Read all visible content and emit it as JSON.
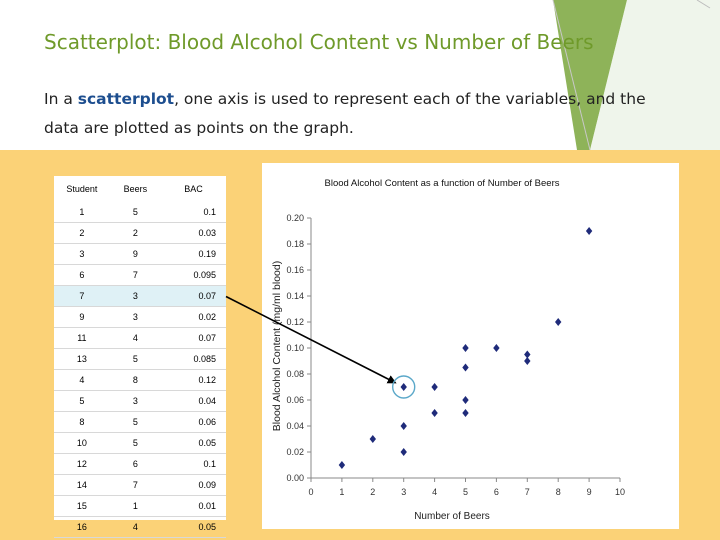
{
  "slide": {
    "title": "Scatterplot: Blood Alcohol Content vs Number of Beers",
    "body_prefix": "In a ",
    "body_keyword": "scatterplot",
    "body_suffix": ", one axis is used to represent each of the variables, and the data are plotted as points on the graph.",
    "colors": {
      "title": "#6f9a2a",
      "keyword": "#1d4e8f",
      "band": "#fbd277",
      "accent_green": "#7aa63c",
      "highlight_row": "#dff1f6",
      "marker": "#1f2b7a"
    }
  },
  "table": {
    "headers": [
      "Student",
      "Beers",
      "BAC"
    ],
    "rows": [
      [
        "1",
        "5",
        "0.1"
      ],
      [
        "2",
        "2",
        "0.03"
      ],
      [
        "3",
        "9",
        "0.19"
      ],
      [
        "6",
        "7",
        "0.095"
      ],
      [
        "7",
        "3",
        "0.07"
      ],
      [
        "9",
        "3",
        "0.02"
      ],
      [
        "11",
        "4",
        "0.07"
      ],
      [
        "13",
        "5",
        "0.085"
      ],
      [
        "4",
        "8",
        "0.12"
      ],
      [
        "5",
        "3",
        "0.04"
      ],
      [
        "8",
        "5",
        "0.06"
      ],
      [
        "10",
        "5",
        "0.05"
      ],
      [
        "12",
        "6",
        "0.1"
      ],
      [
        "14",
        "7",
        "0.09"
      ],
      [
        "15",
        "1",
        "0.01"
      ],
      [
        "16",
        "4",
        "0.05"
      ]
    ],
    "highlighted_row_index": 4
  },
  "chart_data": {
    "type": "scatter",
    "title": "Blood Alcohol Content as a function of Number of Beers",
    "xlabel": "Number of Beers",
    "ylabel": "Blood Alcohol Content (mg/ml blood)",
    "xlim": [
      0,
      10
    ],
    "ylim": [
      0,
      0.2
    ],
    "xticks": [
      "0",
      "1",
      "2",
      "3",
      "4",
      "5",
      "6",
      "7",
      "8",
      "9",
      "10"
    ],
    "yticks": [
      "0.00",
      "0.02",
      "0.04",
      "0.06",
      "0.08",
      "0.10",
      "0.12",
      "0.14",
      "0.16",
      "0.18",
      "0.20"
    ],
    "grid": false,
    "legend": "none",
    "marker_color": "#1f2b7a",
    "points": [
      {
        "x": 5,
        "y": 0.1
      },
      {
        "x": 2,
        "y": 0.03
      },
      {
        "x": 9,
        "y": 0.19
      },
      {
        "x": 7,
        "y": 0.095
      },
      {
        "x": 3,
        "y": 0.07
      },
      {
        "x": 3,
        "y": 0.02
      },
      {
        "x": 4,
        "y": 0.07
      },
      {
        "x": 5,
        "y": 0.085
      },
      {
        "x": 8,
        "y": 0.12
      },
      {
        "x": 3,
        "y": 0.04
      },
      {
        "x": 5,
        "y": 0.06
      },
      {
        "x": 5,
        "y": 0.05
      },
      {
        "x": 6,
        "y": 0.1
      },
      {
        "x": 7,
        "y": 0.09
      },
      {
        "x": 1,
        "y": 0.01
      },
      {
        "x": 4,
        "y": 0.05
      }
    ],
    "annotation": {
      "type": "arrow",
      "from_table_row": 4,
      "to_point": {
        "x": 3,
        "y": 0.07
      },
      "circled": true
    }
  }
}
